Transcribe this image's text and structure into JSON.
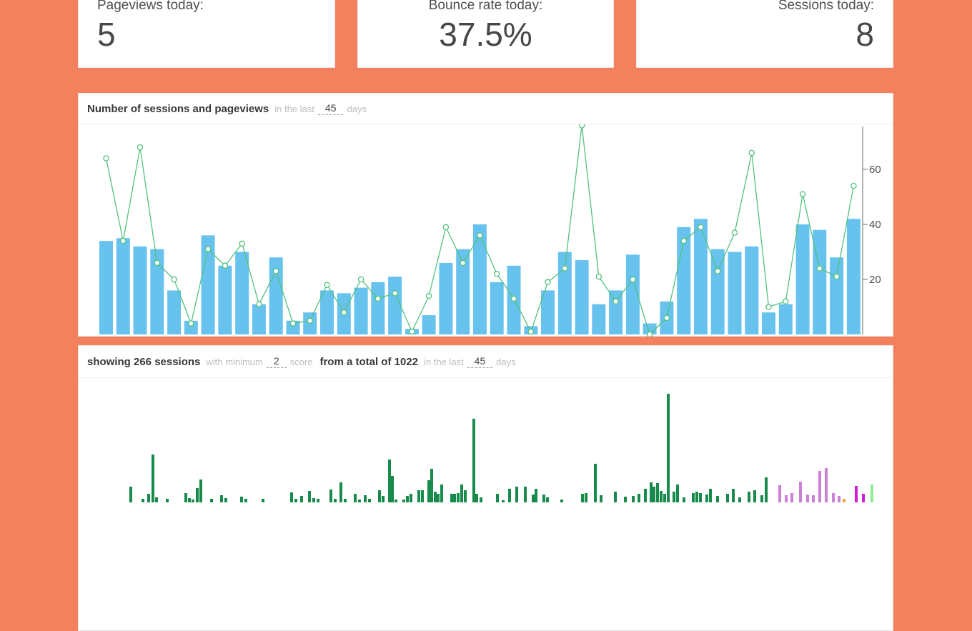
{
  "page": {
    "background": "#f4815d",
    "panel_background": "#ffffff"
  },
  "cards": [
    {
      "label": "Pageviews today:",
      "value": "5"
    },
    {
      "label": "Bounce rate today:",
      "value": "37.5%"
    },
    {
      "label": "Sessions today:",
      "value": "8"
    }
  ],
  "sessions_panel": {
    "title": "Number of sessions and pageviews",
    "in_the_last": "in the last",
    "days_value": "45",
    "days_label": "days"
  },
  "score_panel": {
    "showing": "showing 266 sessions",
    "with_minimum": "with minimum",
    "min_score_value": "2",
    "score_label": "score",
    "total": "from a total of 1022",
    "in_the_last": "in the last",
    "days_value": "45",
    "days_label": "days"
  },
  "chart_data": [
    {
      "type": "bar+line",
      "title": "Number of sessions and pageviews",
      "x_unit": "day (last 45 days, left = oldest)",
      "x_count": 45,
      "yticks": [
        20,
        40,
        60
      ],
      "ylim": [
        0,
        78
      ],
      "axis_side": "right",
      "grid": false,
      "axis_color": "#9a9a9a",
      "tick_label_color": "#4d4d4d",
      "series": [
        {
          "name": "pageviews-bars",
          "type": "bar",
          "color": "#67c3ee",
          "values": [
            34,
            35,
            32,
            31,
            16,
            5,
            36,
            25,
            30,
            11,
            28,
            5,
            8,
            16,
            15,
            17,
            19,
            21,
            2,
            7,
            26,
            31,
            40,
            19,
            25,
            3,
            16,
            30,
            27,
            11,
            16,
            29,
            4,
            12,
            39,
            42,
            31,
            30,
            32,
            8,
            11,
            40,
            38,
            28,
            42
          ]
        },
        {
          "name": "sessions-line",
          "type": "line",
          "color": "#53c17e",
          "marker": "circle-white-fill",
          "values": [
            64,
            34,
            68,
            26,
            20,
            4,
            31,
            25,
            33,
            11,
            23,
            4,
            5,
            18,
            8,
            20,
            13,
            15,
            1,
            14,
            39,
            26,
            36,
            22,
            13,
            1,
            19,
            24,
            76,
            21,
            12,
            20,
            0,
            6,
            34,
            39,
            23,
            37,
            66,
            10,
            12,
            51,
            24,
            21,
            54
          ]
        }
      ]
    },
    {
      "type": "bar",
      "title": "showing 266 sessions with minimum 2 score from a total of 1022 in the last 45 days",
      "note": "thin session-score bars; y-axis not visible (chart cropped by viewport bottom); x = px from page left, h = visible px height above crop",
      "colors": {
        "g": "#178a4c",
        "o": "#cb7fd6",
        "y": "#eaa640",
        "m": "#cf1ed6",
        "l": "#8fec90"
      },
      "bars": [
        [
          180,
          22,
          "g"
        ],
        [
          197,
          5,
          "g"
        ],
        [
          205,
          12,
          "g"
        ],
        [
          211,
          67,
          "g"
        ],
        [
          216,
          7,
          "g"
        ],
        [
          231,
          5,
          "g"
        ],
        [
          257,
          13,
          "g"
        ],
        [
          262,
          6,
          "g"
        ],
        [
          267,
          4,
          "g"
        ],
        [
          273,
          20,
          "g"
        ],
        [
          278,
          32,
          "g"
        ],
        [
          293,
          5,
          "g"
        ],
        [
          307,
          10,
          "g"
        ],
        [
          313,
          6,
          "g"
        ],
        [
          335,
          8,
          "g"
        ],
        [
          341,
          5,
          "g"
        ],
        [
          365,
          5,
          "g"
        ],
        [
          405,
          14,
          "g"
        ],
        [
          411,
          5,
          "g"
        ],
        [
          419,
          9,
          "g"
        ],
        [
          430,
          16,
          "g"
        ],
        [
          436,
          6,
          "g"
        ],
        [
          442,
          5,
          "g"
        ],
        [
          460,
          18,
          "g"
        ],
        [
          466,
          5,
          "g"
        ],
        [
          474,
          28,
          "g"
        ],
        [
          480,
          5,
          "g"
        ],
        [
          494,
          12,
          "g"
        ],
        [
          500,
          4,
          "g"
        ],
        [
          508,
          10,
          "g"
        ],
        [
          514,
          5,
          "g"
        ],
        [
          528,
          17,
          "g"
        ],
        [
          533,
          9,
          "g"
        ],
        [
          542,
          60,
          "g"
        ],
        [
          546,
          37,
          "g"
        ],
        [
          551,
          4,
          "g"
        ],
        [
          562,
          4,
          "g"
        ],
        [
          567,
          9,
          "g"
        ],
        [
          572,
          12,
          "g"
        ],
        [
          583,
          17,
          "g"
        ],
        [
          588,
          17,
          "g"
        ],
        [
          597,
          31,
          "g"
        ],
        [
          601,
          47,
          "g"
        ],
        [
          606,
          15,
          "g"
        ],
        [
          610,
          12,
          "g"
        ],
        [
          615,
          25,
          "g"
        ],
        [
          629,
          12,
          "g"
        ],
        [
          633,
          12,
          "g"
        ],
        [
          638,
          13,
          "g"
        ],
        [
          643,
          25,
          "g"
        ],
        [
          648,
          17,
          "g"
        ],
        [
          660,
          117,
          "g"
        ],
        [
          664,
          12,
          "g"
        ],
        [
          670,
          7,
          "g"
        ],
        [
          693,
          12,
          "g"
        ],
        [
          701,
          3,
          "g"
        ],
        [
          710,
          19,
          "g"
        ],
        [
          720,
          22,
          "g"
        ],
        [
          732,
          22,
          "g"
        ],
        [
          743,
          11,
          "g"
        ],
        [
          747,
          19,
          "g"
        ],
        [
          758,
          11,
          "g"
        ],
        [
          763,
          7,
          "g"
        ],
        [
          783,
          4,
          "g"
        ],
        [
          812,
          12,
          "g"
        ],
        [
          817,
          13,
          "g"
        ],
        [
          830,
          54,
          "g"
        ],
        [
          838,
          10,
          "g"
        ],
        [
          858,
          15,
          "g"
        ],
        [
          872,
          8,
          "g"
        ],
        [
          883,
          9,
          "g"
        ],
        [
          891,
          12,
          "g"
        ],
        [
          900,
          19,
          "g"
        ],
        [
          908,
          28,
          "g"
        ],
        [
          912,
          22,
          "g"
        ],
        [
          917,
          27,
          "g"
        ],
        [
          922,
          16,
          "g"
        ],
        [
          927,
          12,
          "g"
        ],
        [
          932,
          152,
          "g"
        ],
        [
          940,
          15,
          "g"
        ],
        [
          945,
          25,
          "g"
        ],
        [
          954,
          7,
          "g"
        ],
        [
          967,
          13,
          "g"
        ],
        [
          972,
          15,
          "g"
        ],
        [
          977,
          13,
          "g"
        ],
        [
          986,
          11,
          "g"
        ],
        [
          991,
          19,
          "g"
        ],
        [
          1001,
          9,
          "g"
        ],
        [
          1015,
          12,
          "g"
        ],
        [
          1023,
          19,
          "g"
        ],
        [
          1032,
          7,
          "g"
        ],
        [
          1045,
          15,
          "g"
        ],
        [
          1053,
          17,
          "g"
        ],
        [
          1063,
          10,
          "g"
        ],
        [
          1069,
          35,
          "g"
        ],
        [
          1088,
          24,
          "o"
        ],
        [
          1097,
          10,
          "o"
        ],
        [
          1105,
          13,
          "o"
        ],
        [
          1117,
          29,
          "o"
        ],
        [
          1127,
          11,
          "o"
        ],
        [
          1135,
          10,
          "o"
        ],
        [
          1144,
          44,
          "o"
        ],
        [
          1153,
          48,
          "o"
        ],
        [
          1163,
          13,
          "o"
        ],
        [
          1171,
          9,
          "o"
        ],
        [
          1178,
          5,
          "y"
        ],
        [
          1195,
          23,
          "m"
        ],
        [
          1205,
          12,
          "m"
        ],
        [
          1217,
          25,
          "l"
        ]
      ]
    }
  ]
}
